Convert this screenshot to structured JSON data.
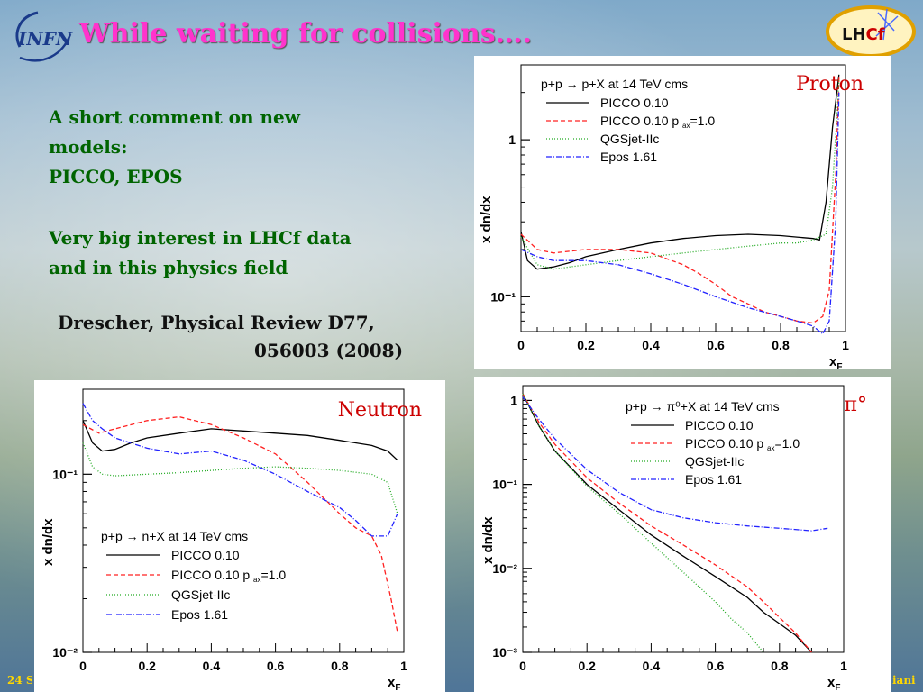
{
  "slide": {
    "title": "While waiting for collisions….",
    "comment_lines": [
      "A short comment on new",
      "models:",
      "PICCO, EPOS"
    ],
    "interest_lines": [
      "Very big interest in LHCf data",
      "and in this physics field"
    ],
    "reference_line1": "Drescher, Physical Review D77,",
    "reference_line2": "056003 (2008)",
    "footer_left": "24 S",
    "footer_right": "iani",
    "logos": {
      "left": "INFN",
      "right_a": "LH",
      "right_b": "Cf"
    }
  },
  "colors": {
    "title": "#ff33cc",
    "comment": "#006400",
    "picco": "#000000",
    "picco_pax": "#ff2020",
    "qgsjet": "#22aa22",
    "epos": "#2222ff",
    "footer": "#ffd700"
  },
  "chart_data": [
    {
      "id": "proton",
      "type": "line",
      "panel_label": "Proton",
      "xlabel": "x",
      "xlabel_sub": "F",
      "ylabel": "x  dn/dx",
      "y_scale": "log",
      "xlim": [
        0,
        1.0
      ],
      "ylim": [
        0.06,
        3.0
      ],
      "xticks": [
        0,
        0.2,
        0.4,
        0.6,
        0.8,
        1
      ],
      "xtick_labels": [
        "0",
        "0.2",
        "0.4",
        "0.6",
        "0.8",
        "1"
      ],
      "yticks": [
        0.1,
        1
      ],
      "ytick_labels": [
        "10⁻¹",
        "1"
      ],
      "legend": {
        "header": "p+p → p+X at 14 TeV cms",
        "position": "top-left"
      },
      "series": [
        {
          "name": "PICCO 0.10",
          "color": "#000000",
          "dash": "",
          "x": [
            0,
            0.02,
            0.05,
            0.1,
            0.15,
            0.2,
            0.3,
            0.4,
            0.5,
            0.6,
            0.7,
            0.8,
            0.85,
            0.9,
            0.92,
            0.94,
            0.96,
            0.98
          ],
          "y": [
            0.26,
            0.17,
            0.15,
            0.155,
            0.165,
            0.18,
            0.2,
            0.22,
            0.235,
            0.245,
            0.25,
            0.245,
            0.24,
            0.235,
            0.23,
            0.4,
            1.2,
            2.6
          ]
        },
        {
          "name": "PICCO 0.10 p  =1.0",
          "name_sub": "ax",
          "color": "#ff2020",
          "dash": "5,3",
          "x": [
            0,
            0.05,
            0.1,
            0.2,
            0.3,
            0.4,
            0.5,
            0.55,
            0.6,
            0.65,
            0.7,
            0.75,
            0.8,
            0.85,
            0.9,
            0.93,
            0.95,
            0.97,
            0.98
          ],
          "y": [
            0.25,
            0.2,
            0.19,
            0.2,
            0.2,
            0.19,
            0.16,
            0.14,
            0.12,
            0.1,
            0.09,
            0.08,
            0.075,
            0.07,
            0.068,
            0.075,
            0.11,
            0.6,
            2.5
          ]
        },
        {
          "name": "QGSjet-IIc",
          "color": "#22aa22",
          "dash": "1,2",
          "x": [
            0,
            0.05,
            0.1,
            0.2,
            0.3,
            0.4,
            0.5,
            0.6,
            0.7,
            0.8,
            0.85,
            0.9,
            0.94,
            0.96,
            0.98
          ],
          "y": [
            0.24,
            0.16,
            0.15,
            0.16,
            0.17,
            0.18,
            0.19,
            0.2,
            0.21,
            0.22,
            0.22,
            0.23,
            0.25,
            0.5,
            2.4
          ]
        },
        {
          "name": "Epos 1.61",
          "color": "#2222ff",
          "dash": "6,2,1,2",
          "x": [
            0,
            0.05,
            0.1,
            0.2,
            0.3,
            0.4,
            0.5,
            0.6,
            0.7,
            0.8,
            0.85,
            0.9,
            0.93,
            0.95,
            0.97,
            0.98
          ],
          "y": [
            0.2,
            0.18,
            0.17,
            0.17,
            0.16,
            0.14,
            0.12,
            0.1,
            0.085,
            0.075,
            0.07,
            0.065,
            0.058,
            0.07,
            0.3,
            2.0
          ]
        }
      ]
    },
    {
      "id": "neutron",
      "type": "line",
      "panel_label": "Neutron",
      "xlabel": "x",
      "xlabel_sub": "F",
      "ylabel": "x  dn/dx",
      "y_scale": "log",
      "xlim": [
        0,
        1.0
      ],
      "ylim": [
        0.01,
        0.3
      ],
      "xticks": [
        0,
        0.2,
        0.4,
        0.6,
        0.8,
        1
      ],
      "xtick_labels": [
        "0",
        "0.2",
        "0.4",
        "0.6",
        "0.8",
        "1"
      ],
      "yticks": [
        0.01,
        0.1
      ],
      "ytick_labels": [
        "10⁻²",
        "10⁻¹"
      ],
      "legend": {
        "header": "p+p → n+X at 14 TeV cms",
        "position": "bottom-left"
      },
      "series": [
        {
          "name": "PICCO 0.10",
          "color": "#000000",
          "dash": "",
          "x": [
            0,
            0.03,
            0.06,
            0.1,
            0.15,
            0.2,
            0.3,
            0.4,
            0.5,
            0.6,
            0.7,
            0.8,
            0.9,
            0.95,
            0.98
          ],
          "y": [
            0.2,
            0.15,
            0.135,
            0.138,
            0.15,
            0.16,
            0.17,
            0.18,
            0.175,
            0.17,
            0.165,
            0.155,
            0.145,
            0.135,
            0.12
          ]
        },
        {
          "name": "PICCO 0.10 p  =1.0",
          "name_sub": "ax",
          "color": "#ff2020",
          "dash": "5,3",
          "x": [
            0,
            0.05,
            0.1,
            0.2,
            0.3,
            0.4,
            0.5,
            0.6,
            0.7,
            0.8,
            0.85,
            0.9,
            0.93,
            0.96,
            0.98
          ],
          "y": [
            0.19,
            0.17,
            0.18,
            0.2,
            0.21,
            0.19,
            0.16,
            0.13,
            0.09,
            0.06,
            0.05,
            0.045,
            0.035,
            0.02,
            0.013
          ]
        },
        {
          "name": "QGSjet-IIc",
          "color": "#22aa22",
          "dash": "1,2",
          "x": [
            0,
            0.03,
            0.06,
            0.1,
            0.2,
            0.3,
            0.4,
            0.5,
            0.6,
            0.7,
            0.8,
            0.9,
            0.95,
            0.98
          ],
          "y": [
            0.15,
            0.11,
            0.1,
            0.098,
            0.1,
            0.102,
            0.105,
            0.108,
            0.11,
            0.108,
            0.105,
            0.1,
            0.09,
            0.06
          ]
        },
        {
          "name": "Epos 1.61",
          "color": "#2222ff",
          "dash": "6,2,1,2",
          "x": [
            0,
            0.03,
            0.06,
            0.1,
            0.2,
            0.3,
            0.4,
            0.5,
            0.6,
            0.7,
            0.8,
            0.85,
            0.9,
            0.95,
            0.98
          ],
          "y": [
            0.25,
            0.2,
            0.18,
            0.16,
            0.14,
            0.13,
            0.135,
            0.12,
            0.1,
            0.08,
            0.065,
            0.055,
            0.045,
            0.045,
            0.06
          ]
        }
      ]
    },
    {
      "id": "pi0",
      "type": "line",
      "panel_label": "π°",
      "xlabel": "x",
      "xlabel_sub": "F",
      "ylabel": "x  dn/dx",
      "y_scale": "log",
      "xlim": [
        0,
        1.0
      ],
      "ylim": [
        0.001,
        1.5
      ],
      "xticks": [
        0,
        0.2,
        0.4,
        0.6,
        0.8,
        1
      ],
      "xtick_labels": [
        "0",
        "0.2",
        "0.4",
        "0.6",
        "0.8",
        "1"
      ],
      "yticks": [
        0.001,
        0.01,
        0.1,
        1
      ],
      "ytick_labels": [
        "10⁻³",
        "10⁻²",
        "10⁻¹",
        "1"
      ],
      "legend": {
        "header": "p+p → π⁰+X at 14 TeV cms",
        "position": "top-right"
      },
      "series": [
        {
          "name": "PICCO 0.10",
          "color": "#000000",
          "dash": "",
          "x": [
            0,
            0.05,
            0.1,
            0.2,
            0.3,
            0.4,
            0.5,
            0.6,
            0.7,
            0.75,
            0.8,
            0.85,
            0.9
          ],
          "y": [
            1.2,
            0.5,
            0.25,
            0.1,
            0.05,
            0.025,
            0.014,
            0.008,
            0.0045,
            0.003,
            0.0022,
            0.0016,
            0.001
          ]
        },
        {
          "name": "PICCO 0.10 p  =1.0",
          "name_sub": "ax",
          "color": "#ff2020",
          "dash": "5,3",
          "x": [
            0,
            0.05,
            0.1,
            0.2,
            0.3,
            0.4,
            0.5,
            0.6,
            0.7,
            0.75,
            0.8,
            0.85,
            0.9
          ],
          "y": [
            1.2,
            0.55,
            0.3,
            0.12,
            0.06,
            0.032,
            0.019,
            0.011,
            0.006,
            0.004,
            0.0026,
            0.0017,
            0.001
          ]
        },
        {
          "name": "QGSjet-IIc",
          "color": "#22aa22",
          "dash": "1,2",
          "x": [
            0,
            0.05,
            0.1,
            0.2,
            0.3,
            0.4,
            0.5,
            0.6,
            0.65,
            0.7,
            0.75
          ],
          "y": [
            1.2,
            0.5,
            0.25,
            0.095,
            0.045,
            0.02,
            0.009,
            0.004,
            0.0025,
            0.0017,
            0.001
          ]
        },
        {
          "name": "Epos 1.61",
          "color": "#2222ff",
          "dash": "6,2,1,2",
          "x": [
            0,
            0.05,
            0.1,
            0.2,
            0.3,
            0.4,
            0.5,
            0.6,
            0.7,
            0.8,
            0.9,
            0.95
          ],
          "y": [
            1.1,
            0.6,
            0.35,
            0.15,
            0.08,
            0.05,
            0.04,
            0.035,
            0.032,
            0.03,
            0.028,
            0.03
          ]
        }
      ]
    }
  ]
}
